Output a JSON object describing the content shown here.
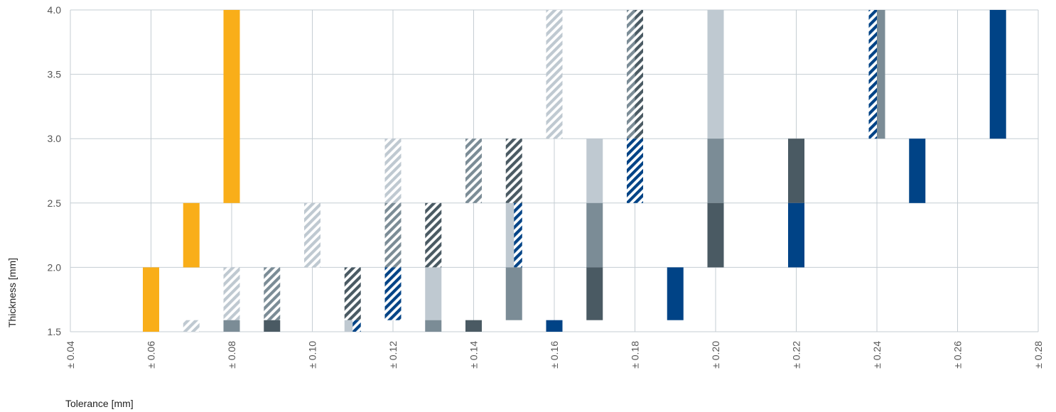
{
  "chart_data": {
    "type": "bar",
    "xlabel": "Tolerance [mm]",
    "ylabel": "Thickness [mm]",
    "xlim": [
      0.04,
      0.28
    ],
    "ylim": [
      1.5,
      4.0
    ],
    "grid": true,
    "x_ticks": [
      "± 0.04",
      "± 0.06",
      "± 0.08",
      "± 0.10",
      "± 0.12",
      "± 0.14",
      "± 0.16",
      "± 0.18",
      "± 0.20",
      "± 0.22",
      "± 0.24",
      "± 0.26",
      "± 0.28"
    ],
    "y_ticks": [
      "1.5",
      "2.0",
      "2.5",
      "3.0",
      "3.5",
      "4.0"
    ],
    "colors": {
      "orange": "#F9AE19",
      "light": "#BFC9D1",
      "mid": "#7B8C96",
      "dark": "#4A5A63",
      "blue": "#004386",
      "grid": "#C5CDD3"
    },
    "bars": [
      {
        "x": 0.06,
        "y0": 1.5,
        "y1": 2.0,
        "color": "orange",
        "hatched": false
      },
      {
        "x": 0.07,
        "y0": 2.0,
        "y1": 2.5,
        "color": "orange",
        "hatched": false
      },
      {
        "x": 0.07,
        "y0": 1.5,
        "y1": 1.59,
        "color": "light",
        "hatched": true
      },
      {
        "x": 0.08,
        "y0": 2.5,
        "y1": 4.0,
        "color": "orange",
        "hatched": false
      },
      {
        "x": 0.08,
        "y0": 1.59,
        "y1": 2.0,
        "color": "light",
        "hatched": true
      },
      {
        "x": 0.08,
        "y0": 1.5,
        "y1": 1.59,
        "color": "mid",
        "hatched": false
      },
      {
        "x": 0.09,
        "y0": 1.59,
        "y1": 2.0,
        "color": "mid",
        "hatched": true
      },
      {
        "x": 0.09,
        "y0": 1.5,
        "y1": 1.59,
        "color": "dark",
        "hatched": false
      },
      {
        "x": 0.1,
        "y0": 2.0,
        "y1": 2.5,
        "color": "light",
        "hatched": true
      },
      {
        "x": 0.11,
        "y0": 1.59,
        "y1": 2.0,
        "color": "dark",
        "hatched": true
      },
      {
        "x": 0.11,
        "y0": 1.5,
        "y1": 1.59,
        "color": "light",
        "hatched": false,
        "part": "left"
      },
      {
        "x": 0.11,
        "y0": 1.5,
        "y1": 1.59,
        "color": "blue",
        "hatched": true,
        "part": "right"
      },
      {
        "x": 0.12,
        "y0": 2.5,
        "y1": 3.0,
        "color": "light",
        "hatched": true
      },
      {
        "x": 0.12,
        "y0": 2.0,
        "y1": 2.5,
        "color": "mid",
        "hatched": true
      },
      {
        "x": 0.12,
        "y0": 1.59,
        "y1": 2.0,
        "color": "blue",
        "hatched": true
      },
      {
        "x": 0.13,
        "y0": 2.0,
        "y1": 2.5,
        "color": "dark",
        "hatched": true
      },
      {
        "x": 0.13,
        "y0": 1.59,
        "y1": 2.0,
        "color": "light",
        "hatched": false
      },
      {
        "x": 0.13,
        "y0": 1.5,
        "y1": 1.59,
        "color": "mid",
        "hatched": false
      },
      {
        "x": 0.14,
        "y0": 2.5,
        "y1": 3.0,
        "color": "mid",
        "hatched": true
      },
      {
        "x": 0.14,
        "y0": 1.5,
        "y1": 1.59,
        "color": "dark",
        "hatched": false
      },
      {
        "x": 0.15,
        "y0": 2.5,
        "y1": 3.0,
        "color": "dark",
        "hatched": true
      },
      {
        "x": 0.15,
        "y0": 2.0,
        "y1": 2.5,
        "color": "light",
        "hatched": false,
        "part": "left"
      },
      {
        "x": 0.15,
        "y0": 2.0,
        "y1": 2.5,
        "color": "blue",
        "hatched": true,
        "part": "right"
      },
      {
        "x": 0.15,
        "y0": 1.59,
        "y1": 2.0,
        "color": "mid",
        "hatched": false
      },
      {
        "x": 0.16,
        "y0": 3.0,
        "y1": 4.0,
        "color": "light",
        "hatched": true
      },
      {
        "x": 0.16,
        "y0": 1.5,
        "y1": 1.59,
        "color": "blue",
        "hatched": false
      },
      {
        "x": 0.17,
        "y0": 2.5,
        "y1": 3.0,
        "color": "light",
        "hatched": false
      },
      {
        "x": 0.17,
        "y0": 2.0,
        "y1": 2.5,
        "color": "mid",
        "hatched": false
      },
      {
        "x": 0.17,
        "y0": 1.59,
        "y1": 2.0,
        "color": "dark",
        "hatched": false
      },
      {
        "x": 0.18,
        "y0": 3.0,
        "y1": 4.0,
        "color": "mid",
        "hatched": true,
        "part": "left"
      },
      {
        "x": 0.18,
        "y0": 3.0,
        "y1": 4.0,
        "color": "dark",
        "hatched": true,
        "part": "right"
      },
      {
        "x": 0.18,
        "y0": 2.5,
        "y1": 3.0,
        "color": "blue",
        "hatched": true
      },
      {
        "x": 0.19,
        "y0": 1.59,
        "y1": 2.0,
        "color": "blue",
        "hatched": false
      },
      {
        "x": 0.2,
        "y0": 3.0,
        "y1": 4.0,
        "color": "light",
        "hatched": false
      },
      {
        "x": 0.2,
        "y0": 2.5,
        "y1": 3.0,
        "color": "mid",
        "hatched": false
      },
      {
        "x": 0.2,
        "y0": 2.0,
        "y1": 2.5,
        "color": "dark",
        "hatched": false
      },
      {
        "x": 0.22,
        "y0": 2.5,
        "y1": 3.0,
        "color": "dark",
        "hatched": false
      },
      {
        "x": 0.22,
        "y0": 2.0,
        "y1": 2.5,
        "color": "blue",
        "hatched": false
      },
      {
        "x": 0.24,
        "y0": 3.0,
        "y1": 4.0,
        "color": "blue",
        "hatched": true,
        "part": "left"
      },
      {
        "x": 0.24,
        "y0": 3.0,
        "y1": 4.0,
        "color": "mid",
        "hatched": false,
        "part": "right"
      },
      {
        "x": 0.25,
        "y0": 2.5,
        "y1": 3.0,
        "color": "blue",
        "hatched": false
      },
      {
        "x": 0.27,
        "y0": 3.0,
        "y1": 4.0,
        "color": "blue",
        "hatched": false
      }
    ]
  }
}
